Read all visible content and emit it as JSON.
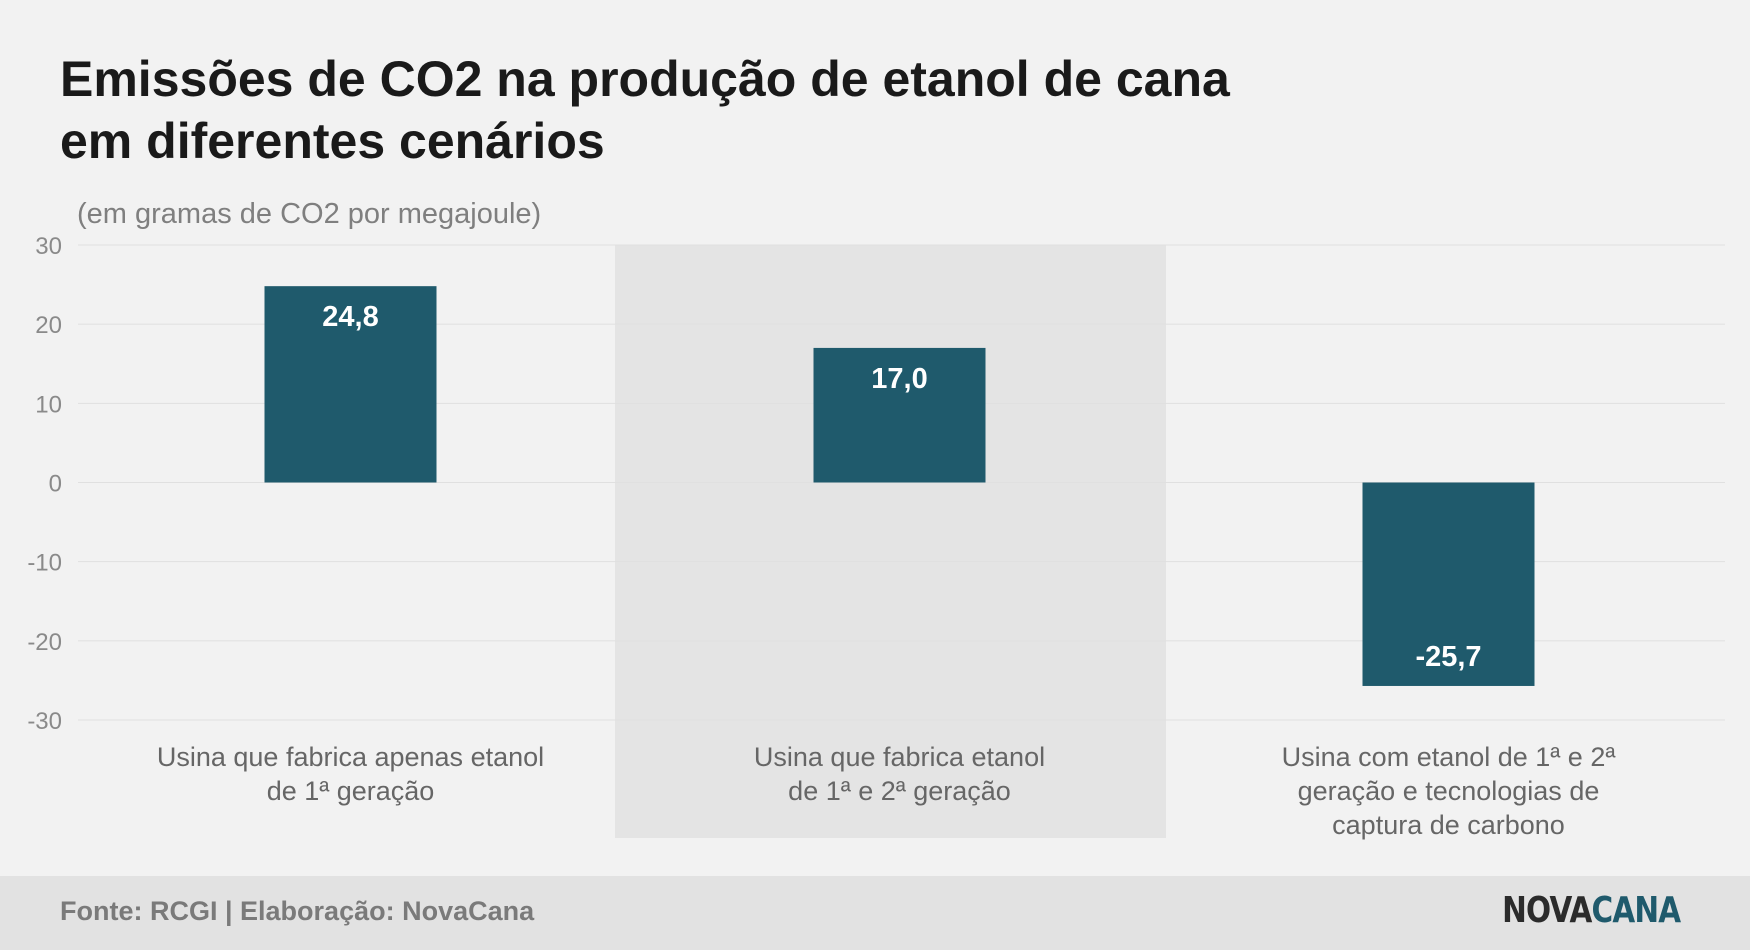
{
  "header": {
    "title_line1": "Emissões de CO2 na produção de etanol de cana",
    "title_line2": "em diferentes cenários",
    "subtitle": "(em gramas de CO2 por megajoule)"
  },
  "footer": {
    "source": "Fonte: RCGI | Elaboração: NovaCana",
    "logo_part1": "NOVA",
    "logo_part2": "CANA"
  },
  "colors": {
    "bar": "#1f5a6c",
    "highlight_band": "#e4e4e4",
    "grid": "#e0e0e0",
    "tick_text": "#8a8a8a",
    "category_text": "#666666"
  },
  "chart_data": {
    "type": "bar",
    "categories": [
      [
        "Usina que fabrica apenas etanol",
        "de 1ª geração"
      ],
      [
        "Usina que fabrica etanol",
        "de 1ª e 2ª geração"
      ],
      [
        "Usina com etanol de 1ª e 2ª",
        "geração e tecnologias de",
        "captura de carbono"
      ]
    ],
    "values": [
      24.8,
      17.0,
      -25.7
    ],
    "value_labels": [
      "24,8",
      "17,0",
      "-25,7"
    ],
    "ylim": [
      -30,
      30
    ],
    "yticks": [
      30,
      20,
      10,
      0,
      -10,
      -20,
      -30
    ],
    "highlighted_category": 1,
    "grid": true,
    "legend": "none"
  }
}
